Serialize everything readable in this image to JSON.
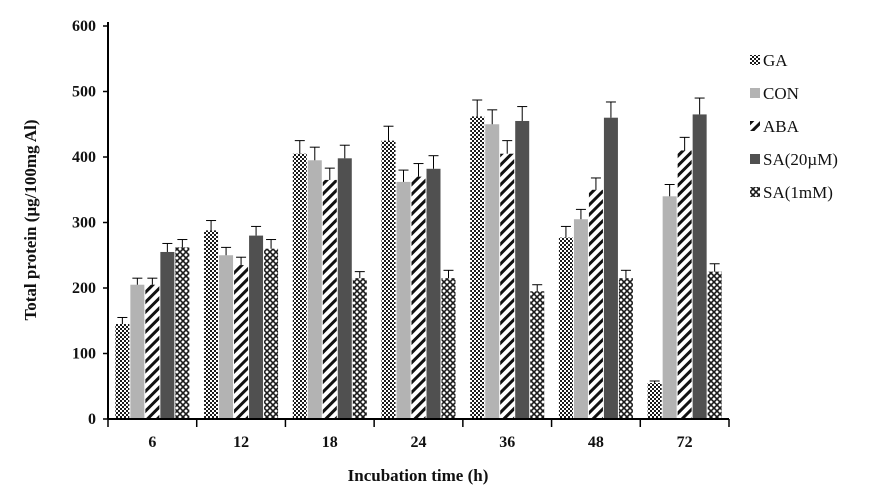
{
  "chart_data": {
    "type": "bar",
    "xlabel": "Incubation time (h)",
    "ylabel": "Total protein (µg/100mg Al)",
    "ylim": [
      0,
      600
    ],
    "yticks": [
      0,
      100,
      200,
      300,
      400,
      500,
      600
    ],
    "categories": [
      "6",
      "12",
      "18",
      "24",
      "36",
      "48",
      "72"
    ],
    "legend_position": "right",
    "grid": false,
    "series": [
      {
        "name": "GA",
        "pattern": "dots",
        "color": "#1a1a1a",
        "values": [
          145,
          288,
          405,
          425,
          462,
          277,
          55
        ],
        "errors": [
          10,
          15,
          20,
          22,
          25,
          17,
          3
        ]
      },
      {
        "name": "CON",
        "pattern": "solid",
        "color": "#b3b3b3",
        "values": [
          205,
          250,
          395,
          362,
          450,
          305,
          340
        ],
        "errors": [
          10,
          12,
          20,
          18,
          22,
          15,
          18
        ]
      },
      {
        "name": "ABA",
        "pattern": "diagonal",
        "color": "#111111",
        "values": [
          205,
          235,
          365,
          370,
          405,
          350,
          410
        ],
        "errors": [
          10,
          12,
          18,
          20,
          20,
          18,
          20
        ]
      },
      {
        "name": "SA(20µM)",
        "pattern": "solid",
        "color": "#505050",
        "values": [
          255,
          280,
          398,
          382,
          455,
          460,
          465
        ],
        "errors": [
          13,
          14,
          20,
          20,
          22,
          24,
          25
        ]
      },
      {
        "name": "SA(1mM)",
        "pattern": "crosshatch",
        "color": "#1a1a1a",
        "values": [
          262,
          260,
          215,
          215,
          195,
          215,
          225
        ],
        "errors": [
          12,
          14,
          10,
          12,
          10,
          12,
          12
        ]
      }
    ]
  }
}
